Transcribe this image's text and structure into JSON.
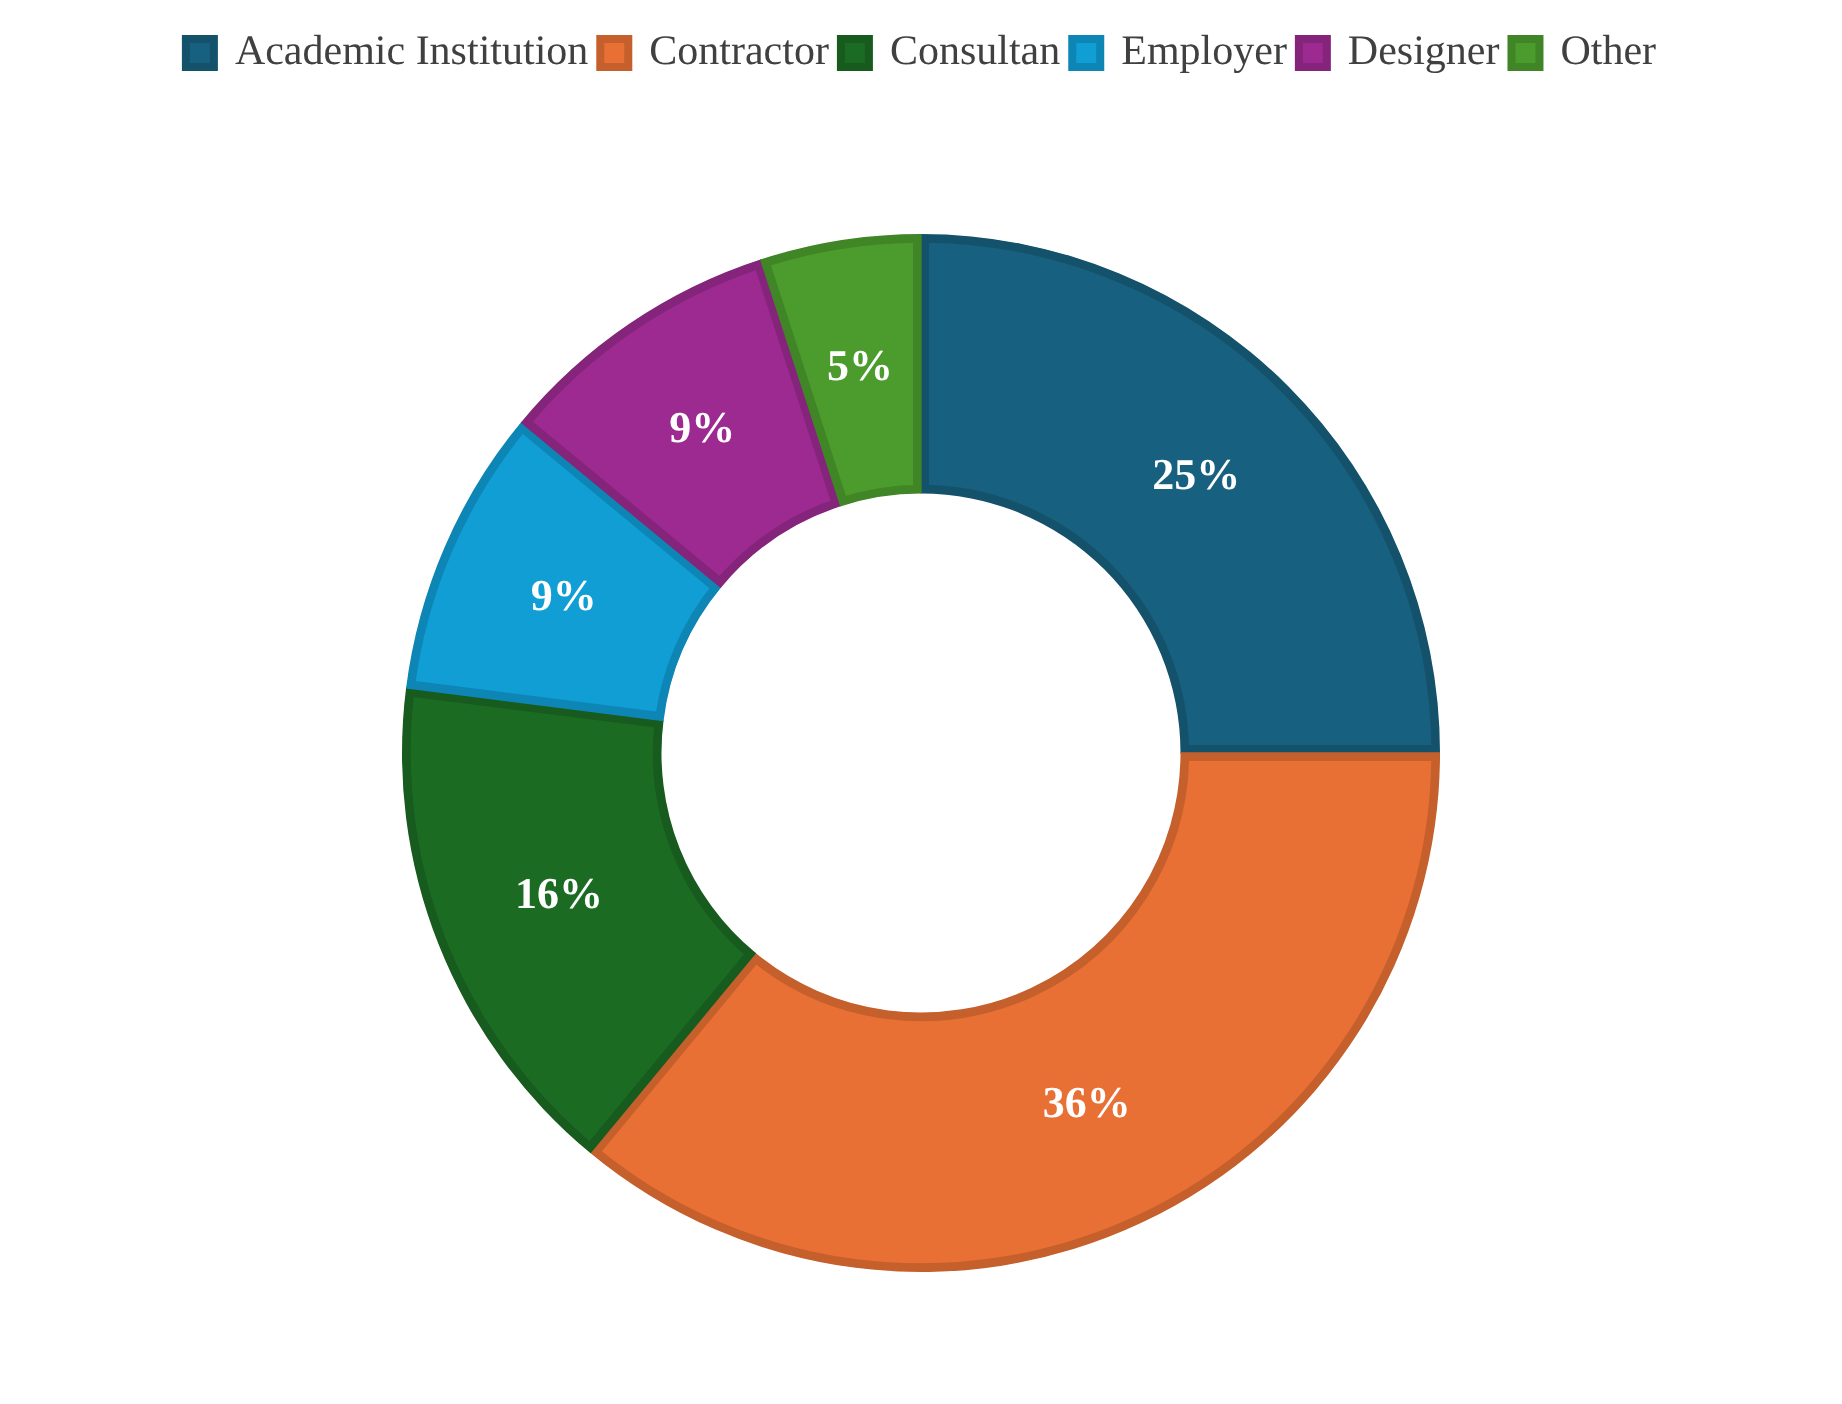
{
  "chart_data": {
    "type": "donut",
    "categories": [
      "Academic Institution",
      "Contractor",
      "Consultan",
      "Employer",
      "Designer",
      "Other"
    ],
    "values": [
      25,
      36,
      16,
      9,
      9,
      5
    ],
    "colors": [
      "#17607f",
      "#e87034",
      "#1b6b23",
      "#119ed5",
      "#9c2a91",
      "#4b9c2d"
    ],
    "value_labels": [
      "25%",
      "36%",
      "16%",
      "9%",
      "9%",
      "5%"
    ],
    "legend": "top"
  }
}
